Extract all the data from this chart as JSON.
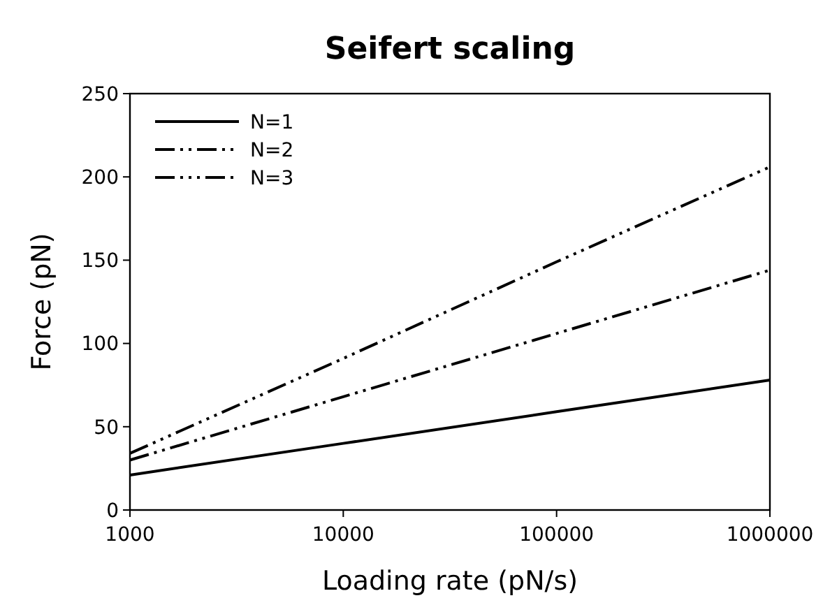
{
  "chart_data": {
    "type": "line",
    "title": "Seifert scaling",
    "xlabel": "Loading rate (pN/s)",
    "ylabel": "Force (pN)",
    "log": "x",
    "x": [
      1000,
      10000,
      100000,
      1000000
    ],
    "xlim": [
      1000,
      1000000
    ],
    "xticks": [
      1000,
      10000,
      100000,
      1000000
    ],
    "ylim": [
      0,
      250
    ],
    "yticks": [
      0,
      50,
      100,
      150,
      200,
      250
    ],
    "legend": "top left",
    "grid": false,
    "series": [
      {
        "name": "N=1",
        "color": "#000000",
        "line_style": "solid",
        "values": [
          21,
          40,
          59,
          78
        ]
      },
      {
        "name": "N=2",
        "color": "#000000",
        "line_style": "dashed",
        "values": [
          30,
          68,
          106,
          144
        ]
      },
      {
        "name": "N=3",
        "color": "#000000",
        "line_style": "dashed",
        "values": [
          34,
          91,
          149,
          206
        ]
      }
    ]
  }
}
